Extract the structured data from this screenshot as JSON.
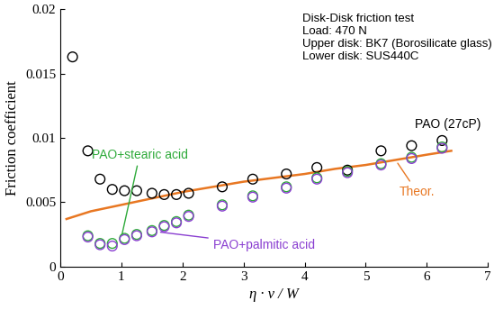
{
  "chart_data": {
    "type": "scatter",
    "x_label": "η · v / W",
    "y_label": "Friction coefficient",
    "annotations": [
      "Disk-Disk friction test",
      "Load: 470 N",
      "Upper disk: BK7 (Borosilicate glass)",
      "Lower disk: SUS440C"
    ],
    "xlim": [
      0,
      7
    ],
    "ylim": [
      0,
      0.02
    ],
    "xticks": [
      0,
      1,
      2,
      3,
      4,
      5,
      6,
      7
    ],
    "yticks": [
      0,
      0.005,
      0.01,
      0.015,
      0.02
    ],
    "grid": false,
    "series": [
      {
        "name": "PAO (27cP)",
        "type": "scatter",
        "marker": "o",
        "color": "#000000",
        "x": [
          0.2,
          0.45,
          0.65,
          0.85,
          1.05,
          1.25,
          1.5,
          1.7,
          1.9,
          2.1,
          2.65,
          3.15,
          3.7,
          4.2,
          4.7,
          5.25,
          5.75,
          6.25
        ],
        "values": [
          0.0163,
          0.009,
          0.0068,
          0.006,
          0.0059,
          0.0059,
          0.0057,
          0.0056,
          0.0056,
          0.0057,
          0.0062,
          0.0068,
          0.0072,
          0.0077,
          0.0075,
          0.009,
          0.0094,
          0.0098
        ]
      },
      {
        "name": "PAO+stearic acid",
        "type": "scatter",
        "marker": "o",
        "color": "#2eaa3a",
        "x": [
          0.45,
          0.65,
          0.85,
          1.05,
          1.25,
          1.5,
          1.7,
          1.9,
          2.1,
          2.65,
          3.15,
          3.7,
          4.2,
          4.7,
          5.25,
          5.75,
          6.25
        ],
        "values": [
          0.0024,
          0.0018,
          0.0018,
          0.0022,
          0.0025,
          0.0028,
          0.0032,
          0.0035,
          0.004,
          0.0048,
          0.0055,
          0.0062,
          0.0069,
          0.0074,
          0.008,
          0.0085,
          0.0093
        ]
      },
      {
        "name": "PAO+palmitic acid",
        "type": "scatter",
        "marker": "o",
        "color": "#8a3fd1",
        "x": [
          0.45,
          0.65,
          0.85,
          1.05,
          1.25,
          1.5,
          1.7,
          1.9,
          2.1,
          2.65,
          3.15,
          3.7,
          4.2,
          4.7,
          5.25,
          5.75,
          6.25
        ],
        "values": [
          0.0023,
          0.0017,
          0.0016,
          0.0021,
          0.0024,
          0.0027,
          0.0031,
          0.0034,
          0.0039,
          0.0047,
          0.0054,
          0.0061,
          0.0068,
          0.0073,
          0.0079,
          0.0084,
          0.0092
        ]
      },
      {
        "name": "Theor.",
        "type": "line",
        "line_style": "solid",
        "color": "#e87722",
        "x": [
          0.1,
          0.5,
          1,
          1.5,
          2,
          2.5,
          3,
          3.5,
          4,
          4.5,
          5,
          5.5,
          6,
          6.4
        ],
        "values": [
          0.0037,
          0.0043,
          0.0048,
          0.0053,
          0.0058,
          0.0062,
          0.0066,
          0.0069,
          0.0072,
          0.0076,
          0.0079,
          0.0083,
          0.0087,
          0.009
        ]
      }
    ]
  }
}
